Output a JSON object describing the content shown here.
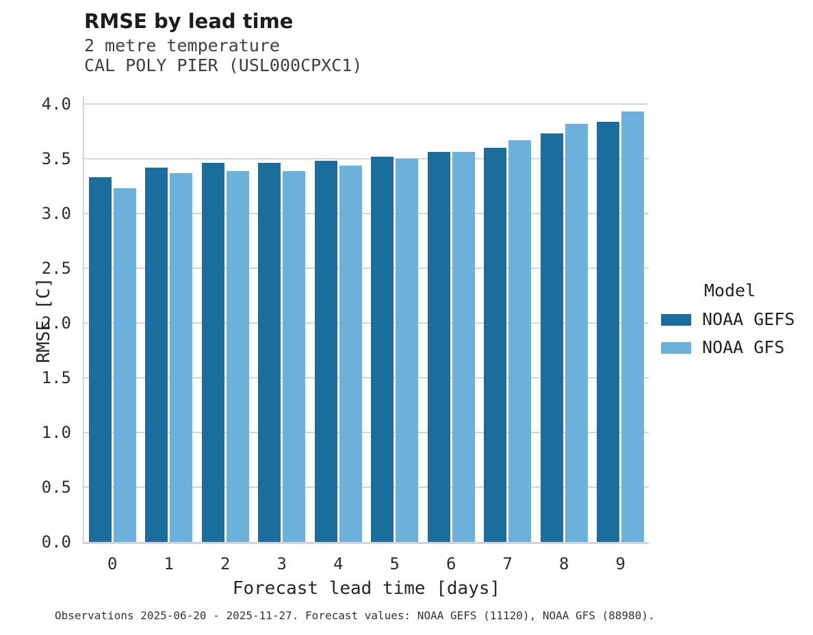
{
  "title": "RMSE by lead time",
  "subtitle_lines": [
    "2 metre temperature",
    "CAL POLY PIER (USL000CPXC1)"
  ],
  "caption": "Observations 2025-06-20 - 2025-11-27. Forecast values: NOAA GEFS (11120), NOAA GFS (88980).",
  "colors": {
    "noaa_gefs": "#1b6d9d",
    "noaa_gfs": "#6cb1dc",
    "grid": "#d4d4d4",
    "title_text": "#1c1c1c",
    "subtitle_text": "#3f3f3f"
  },
  "legend": {
    "title": "Model",
    "items": [
      {
        "label": "NOAA GEFS",
        "color": "#1b6d9d"
      },
      {
        "label": "NOAA GFS",
        "color": "#6cb1dc"
      }
    ]
  },
  "chart_data": {
    "type": "bar",
    "title": "RMSE by lead time",
    "subtitle": [
      "2 metre temperature",
      "CAL POLY PIER (USL000CPXC1)"
    ],
    "xlabel": "Forecast lead time [days]",
    "ylabel": "RMSE [C]",
    "categories": [
      0,
      1,
      2,
      3,
      4,
      5,
      6,
      7,
      8,
      9
    ],
    "series": [
      {
        "name": "NOAA GEFS",
        "color": "#1b6d9d",
        "values": [
          3.33,
          3.42,
          3.46,
          3.46,
          3.48,
          3.52,
          3.56,
          3.6,
          3.73,
          3.84
        ]
      },
      {
        "name": "NOAA GFS",
        "color": "#6cb1dc",
        "values": [
          3.23,
          3.37,
          3.39,
          3.39,
          3.44,
          3.5,
          3.56,
          3.67,
          3.82,
          3.93
        ]
      }
    ],
    "ylim": [
      0.0,
      4.0
    ],
    "ytick_step": 0.5,
    "grid": true,
    "legend_position": "right",
    "legend_title": "Model"
  }
}
